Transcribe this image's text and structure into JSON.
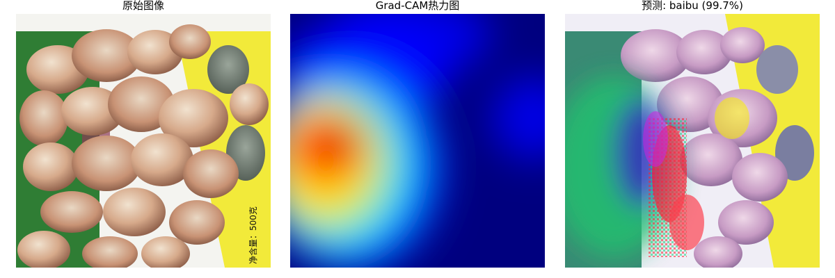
{
  "panels": [
    {
      "title": "原始图像",
      "content": "original-photo"
    },
    {
      "title": "Grad-CAM热力图",
      "content": "heatmap"
    },
    {
      "title": "预测: baibu (99.7%)",
      "content": "overlay"
    }
  ],
  "package_text": {
    "weight": "净含量：500克"
  },
  "colors": {
    "heat_low": "#00007f",
    "heat_mid": "#00ffff",
    "heat_high": "#ff0000",
    "package_green": "#2f7d34",
    "package_yellow": "#f2ea3a"
  }
}
